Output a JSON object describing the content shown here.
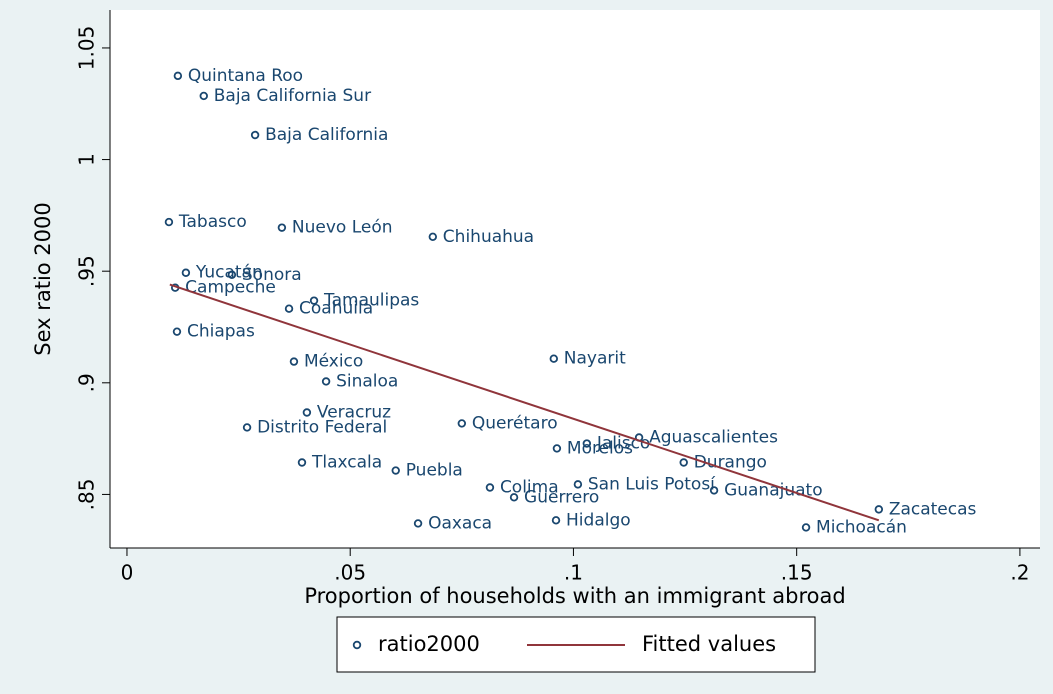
{
  "chart_data": {
    "type": "scatter",
    "x_label": "Proportion of households with an immigrant abroad",
    "y_label": "Sex ratio 2000",
    "xlim": [
      -0.0038,
      0.2045
    ],
    "ylim": [
      0.826,
      1.067
    ],
    "xticks": [
      0,
      {
        "value": 0.05,
        "label": ".05"
      },
      {
        "value": 0.1,
        "label": ".1"
      },
      {
        "value": 0.15,
        "label": ".15"
      },
      {
        "value": 0.2,
        "label": ".2"
      }
    ],
    "yticks": [
      {
        "value": 0.85,
        "label": ".85"
      },
      {
        "value": 0.9,
        "label": ".9"
      },
      {
        "value": 0.95,
        "label": ".95"
      },
      1,
      1.05
    ],
    "grid": false,
    "legend": "bottom",
    "series": [
      {
        "name": "ratio2000",
        "color": "#1a476f",
        "marker": "hollow-circle",
        "labels": [
          "Quintana Roo",
          "Baja California Sur",
          "Baja California",
          "Tabasco",
          "Nuevo León",
          "Chihuahua",
          "Yucatán",
          "Sonora",
          "Campeche",
          "Tamaulipas",
          "Coahuila",
          "Chiapas",
          "Nayarit",
          "México",
          "Sinaloa",
          "Veracruz",
          "Distrito Federal",
          "Querétaro",
          "Aguascalientes",
          "Jalisco",
          "Morelos",
          "Tlaxcala",
          "Durango",
          "Puebla",
          "Colima",
          "San Luis Potosí",
          "Guanajuato",
          "Guerrero",
          "Zacatecas",
          "Oaxaca",
          "Hidalgo",
          "Michoacán"
        ],
        "x": [
          0.0114,
          0.0172,
          0.0287,
          0.0094,
          0.0347,
          0.0685,
          0.0132,
          0.0235,
          0.0108,
          0.0419,
          0.0363,
          0.0112,
          0.0956,
          0.0374,
          0.0446,
          0.0403,
          0.0269,
          0.075,
          0.1147,
          0.103,
          0.0963,
          0.0392,
          0.1247,
          0.0602,
          0.0813,
          0.101,
          0.1315,
          0.0867,
          0.1684,
          0.0652,
          0.0961,
          0.1521
        ],
        "values": [
          1.0375,
          1.0285,
          1.011,
          0.972,
          0.9695,
          0.9654,
          0.9493,
          0.9484,
          0.9426,
          0.9368,
          0.9332,
          0.9229,
          0.9108,
          0.9095,
          0.9006,
          0.8867,
          0.88,
          0.8818,
          0.8755,
          0.8728,
          0.8706,
          0.8643,
          0.8643,
          0.8607,
          0.8531,
          0.8545,
          0.8518,
          0.8487,
          0.8433,
          0.837,
          0.8384,
          0.8352
        ]
      },
      {
        "name": "Fitted values",
        "color": "#90353b",
        "type": "line",
        "x": [
          0.0096,
          0.1684
        ],
        "values": [
          0.944,
          0.8384
        ]
      }
    ]
  }
}
